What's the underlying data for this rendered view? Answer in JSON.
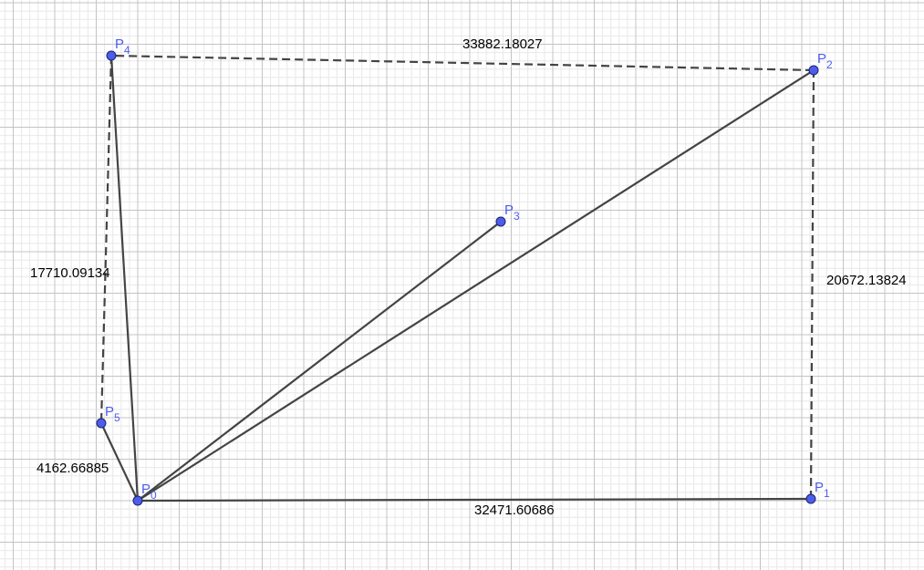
{
  "colors": {
    "point_fill": "#4d5dea",
    "point_label": "#4d5dea",
    "segment": "#444444",
    "grid_minor": "#e8e8e8",
    "grid_major": "#c4c4c4"
  },
  "points": [
    {
      "id": "P0",
      "name": "P",
      "sub": "0"
    },
    {
      "id": "P1",
      "name": "P",
      "sub": "1"
    },
    {
      "id": "P2",
      "name": "P",
      "sub": "2"
    },
    {
      "id": "P3",
      "name": "P",
      "sub": "3"
    },
    {
      "id": "P4",
      "name": "P",
      "sub": "4"
    },
    {
      "id": "P5",
      "name": "P",
      "sub": "5"
    }
  ],
  "segments": [
    {
      "from": "P0",
      "to": "P1",
      "style": "solid",
      "length_label": "32471.60686"
    },
    {
      "from": "P0",
      "to": "P2",
      "style": "solid",
      "length_label": ""
    },
    {
      "from": "P0",
      "to": "P3",
      "style": "solid",
      "length_label": ""
    },
    {
      "from": "P0",
      "to": "P4",
      "style": "solid",
      "length_label": ""
    },
    {
      "from": "P0",
      "to": "P5",
      "style": "solid",
      "length_label": "4162.66885"
    },
    {
      "from": "P1",
      "to": "P2",
      "style": "dashed",
      "length_label": "20672.13824"
    },
    {
      "from": "P2",
      "to": "P4",
      "style": "dashed",
      "length_label": "33882.18027"
    },
    {
      "from": "P4",
      "to": "P5",
      "style": "dashed",
      "length_label": "17710.09134"
    }
  ]
}
